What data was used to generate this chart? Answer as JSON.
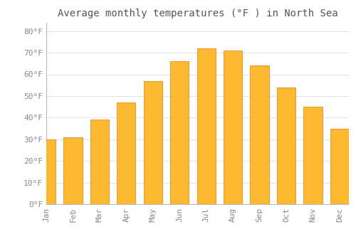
{
  "title": "Average monthly temperatures (°F ) in North Sea",
  "months": [
    "Jan",
    "Feb",
    "Mar",
    "Apr",
    "May",
    "Jun",
    "Jul",
    "Aug",
    "Sep",
    "Oct",
    "Nov",
    "Dec"
  ],
  "values": [
    30,
    31,
    39,
    47,
    57,
    66,
    72,
    71,
    64,
    54,
    45,
    35
  ],
  "bar_color_top": "#FDB931",
  "bar_color_bottom": "#F5A800",
  "bar_edge_color": "#E08000",
  "background_color": "#FFFFFF",
  "grid_color": "#DDDDDD",
  "tick_label_color": "#888888",
  "title_color": "#555555",
  "ylim": [
    0,
    84
  ],
  "yticks": [
    0,
    10,
    20,
    30,
    40,
    50,
    60,
    70,
    80
  ],
  "ytick_labels": [
    "0°F",
    "10°F",
    "20°F",
    "30°F",
    "40°F",
    "50°F",
    "60°F",
    "70°F",
    "80°F"
  ],
  "title_fontsize": 10,
  "tick_fontsize": 8,
  "font_family": "monospace"
}
